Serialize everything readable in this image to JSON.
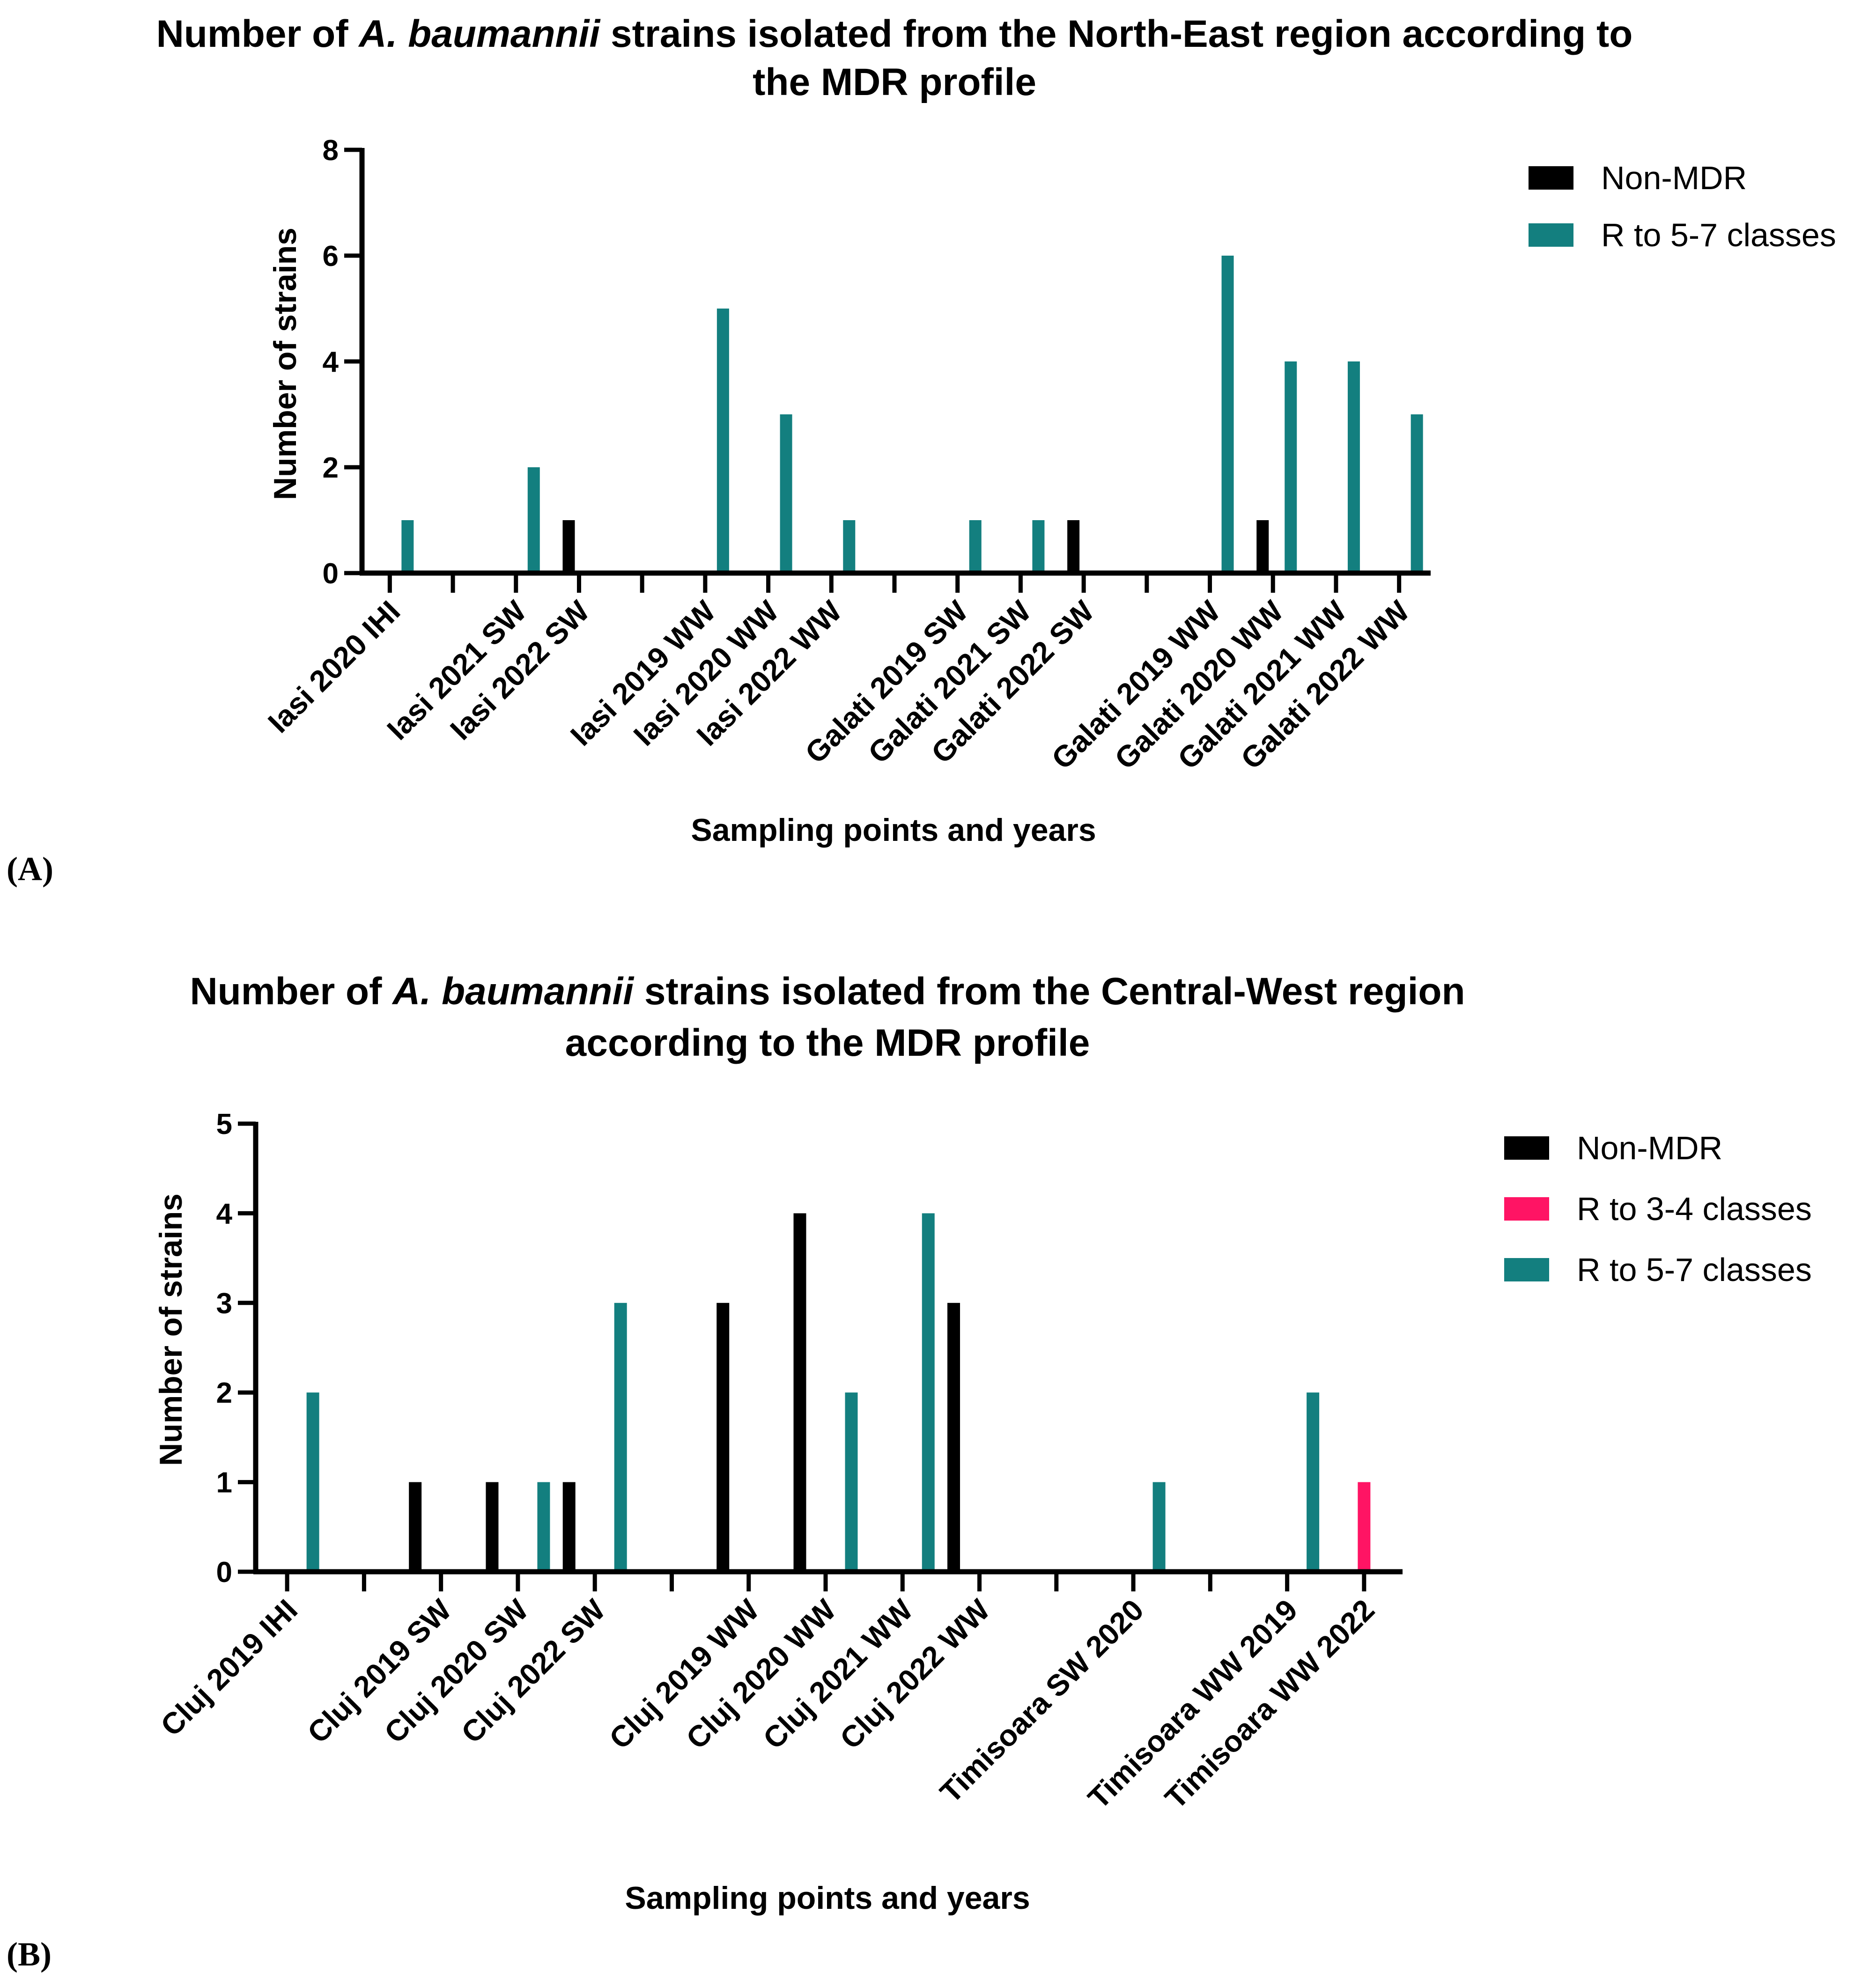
{
  "colors": {
    "nonmdr": "#000000",
    "r34": "#ff1464",
    "r57": "#137f7f",
    "axis": "#000000"
  },
  "chart_data": [
    {
      "type": "bar",
      "panel": "(A)",
      "title_line1_a": "Number of ",
      "title_line1_italic": "A. baumannii",
      "title_line1_b": " strains isolated from the North-East region according to",
      "title_line2": "the MDR profile",
      "xlabel": "Sampling points and years",
      "ylabel": "Number of strains",
      "ylim": [
        0,
        8
      ],
      "yticks": [
        "0",
        "2",
        "4",
        "6",
        "8"
      ],
      "categories": [
        "Iasi 2020 IHI",
        "",
        "Iasi 2021 SW",
        "Iasi 2022 SW",
        "",
        "Iasi 2019 WW",
        "Iasi 2020 WW",
        "Iasi 2022 WW",
        "",
        "Galati 2019 SW",
        "Galati 2021 SW",
        "Galati 2022 SW",
        "",
        "Galati 2019 WW",
        "Galati 2020 WW",
        "Galati 2021 WW",
        "Galati 2022 WW"
      ],
      "series": [
        {
          "name": "Non-MDR",
          "color": "#000000",
          "values": [
            0,
            0,
            0,
            1,
            0,
            0,
            0,
            0,
            0,
            0,
            0,
            1,
            0,
            0,
            1,
            0,
            0
          ]
        },
        {
          "name": "R to 5-7 classes",
          "color": "#137f7f",
          "values": [
            1,
            0,
            2,
            0,
            0,
            5,
            3,
            1,
            0,
            1,
            1,
            0,
            0,
            6,
            4,
            4,
            3
          ]
        }
      ]
    },
    {
      "type": "bar",
      "panel": "(B)",
      "title_line1_a": "Number of ",
      "title_line1_italic": "A. baumannii",
      "title_line1_b": " strains isolated from the Central-West region",
      "title_line2": "according to the MDR profile",
      "xlabel": "Sampling points and years",
      "ylabel": "Number of strains",
      "ylim": [
        0,
        5
      ],
      "yticks": [
        "0",
        "1",
        "2",
        "3",
        "4",
        "5"
      ],
      "categories": [
        "Cluj 2019 IHI",
        "",
        "Cluj 2019 SW",
        "Cluj 2020 SW",
        "Cluj 2022 SW",
        "",
        "Cluj 2019 WW",
        "Cluj 2020 WW",
        "Cluj 2021 WW",
        "Cluj 2022 WW",
        "",
        "Timisoara SW 2020",
        "",
        "Timisoara WW 2019",
        "Timisoara WW 2022"
      ],
      "series": [
        {
          "name": "Non-MDR",
          "color": "#000000",
          "values": [
            0,
            0,
            1,
            1,
            1,
            0,
            3,
            4,
            0,
            3,
            0,
            0,
            0,
            0,
            0
          ]
        },
        {
          "name": "R to 3-4 classes",
          "color": "#ff1464",
          "values": [
            0,
            0,
            0,
            0,
            0,
            0,
            0,
            0,
            0,
            0,
            0,
            0,
            0,
            0,
            1
          ]
        },
        {
          "name": "R to 5-7 classes",
          "color": "#137f7f",
          "values": [
            2,
            0,
            0,
            1,
            3,
            0,
            0,
            2,
            4,
            0,
            0,
            1,
            0,
            2,
            0
          ]
        }
      ]
    }
  ]
}
